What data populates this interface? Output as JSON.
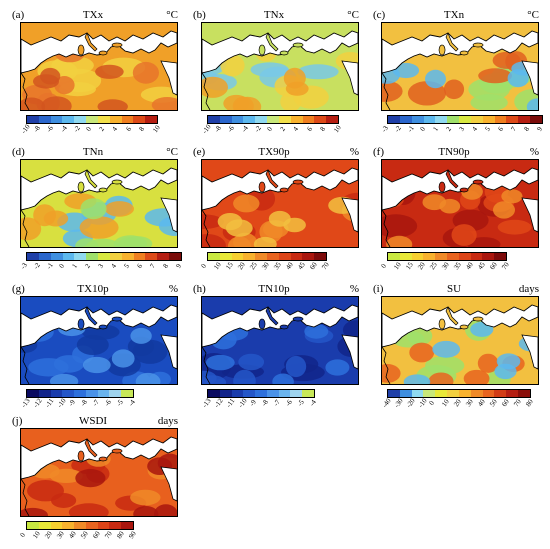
{
  "panels": [
    {
      "id": "a",
      "label": "(a)",
      "title": "TXx",
      "unit": "°C",
      "ticks": [
        "-10",
        "-8",
        "-6",
        "-4",
        "-2",
        "0",
        "2",
        "4",
        "6",
        "8",
        "10"
      ],
      "colors": [
        "#1f3fa8",
        "#2a66cc",
        "#3f8fe0",
        "#5cb8ee",
        "#8fd9f0",
        "#c8e87a",
        "#f2e04a",
        "#f8b22e",
        "#f07f20",
        "#dd4a18",
        "#b51e12"
      ],
      "base": "#f0a028",
      "blobs": [
        [
          "#f2d040",
          0.55
        ],
        [
          "#e8742a",
          0.45
        ],
        [
          "#d2551e",
          0.25
        ]
      ]
    },
    {
      "id": "b",
      "label": "(b)",
      "title": "TNx",
      "unit": "°C",
      "ticks": [
        "-10",
        "-8",
        "-6",
        "-4",
        "-2",
        "0",
        "2",
        "4",
        "6",
        "8",
        "10"
      ],
      "colors": [
        "#1f3fa8",
        "#2a66cc",
        "#3f8fe0",
        "#5cb8ee",
        "#8fd9f0",
        "#c8e87a",
        "#f2e04a",
        "#f8b22e",
        "#f07f20",
        "#dd4a18",
        "#b51e12"
      ],
      "base": "#c8e060",
      "blobs": [
        [
          "#78c8e8",
          0.5
        ],
        [
          "#f2d040",
          0.45
        ],
        [
          "#f0a028",
          0.3
        ]
      ]
    },
    {
      "id": "c",
      "label": "(c)",
      "title": "TXn",
      "unit": "°C",
      "ticks": [
        "-3",
        "-2",
        "-1",
        "0",
        "1",
        "2",
        "3",
        "4",
        "5",
        "6",
        "7",
        "8",
        "9"
      ],
      "colors": [
        "#1f3fa8",
        "#2a66cc",
        "#3f8fe0",
        "#5cb8ee",
        "#8fd9f0",
        "#9fe06a",
        "#d8e840",
        "#f2d040",
        "#f8b22e",
        "#f07f20",
        "#dd4a18",
        "#b51e12",
        "#7a0c0a"
      ],
      "base": "#f2c040",
      "blobs": [
        [
          "#9fe06a",
          0.5
        ],
        [
          "#e06020",
          0.45
        ],
        [
          "#5cb8ee",
          0.2
        ]
      ]
    },
    {
      "id": "d",
      "label": "(d)",
      "title": "TNn",
      "unit": "°C",
      "ticks": [
        "-3",
        "-2",
        "-1",
        "0",
        "1",
        "2",
        "3",
        "4",
        "5",
        "6",
        "7",
        "8",
        "9"
      ],
      "colors": [
        "#1f3fa8",
        "#2a66cc",
        "#3f8fe0",
        "#5cb8ee",
        "#8fd9f0",
        "#9fe06a",
        "#d8e840",
        "#f2d040",
        "#f8b22e",
        "#f07f20",
        "#dd4a18",
        "#b51e12",
        "#7a0c0a"
      ],
      "base": "#d8e040",
      "blobs": [
        [
          "#5cb8ee",
          0.45
        ],
        [
          "#f0a028",
          0.45
        ],
        [
          "#9fe06a",
          0.4
        ]
      ]
    },
    {
      "id": "e",
      "label": "(e)",
      "title": "TX90p",
      "unit": "%",
      "ticks": [
        "0",
        "10",
        "15",
        "20",
        "25",
        "30",
        "35",
        "40",
        "45",
        "60",
        "70"
      ],
      "colors": [
        "#c8e840",
        "#e8e838",
        "#f6d030",
        "#f8b22e",
        "#f08a28",
        "#e86420",
        "#dc4418",
        "#c82a12",
        "#aa160e",
        "#7c0a0a"
      ],
      "base": "#e04818",
      "blobs": [
        [
          "#c82a12",
          0.55
        ],
        [
          "#f08a28",
          0.4
        ],
        [
          "#f2c040",
          0.2
        ]
      ]
    },
    {
      "id": "f",
      "label": "(f)",
      "title": "TN90p",
      "unit": "%",
      "ticks": [
        "0",
        "10",
        "15",
        "20",
        "25",
        "30",
        "35",
        "40",
        "45",
        "60",
        "70"
      ],
      "colors": [
        "#c8e840",
        "#e8e838",
        "#f6d030",
        "#f8b22e",
        "#f08a28",
        "#e86420",
        "#dc4418",
        "#c82a12",
        "#aa160e",
        "#7c0a0a"
      ],
      "base": "#c82a12",
      "blobs": [
        [
          "#a8160e",
          0.55
        ],
        [
          "#e04818",
          0.35
        ],
        [
          "#f08a28",
          0.15
        ]
      ]
    },
    {
      "id": "g",
      "label": "(g)",
      "title": "TX10p",
      "unit": "%",
      "ticks": [
        "-13",
        "-12",
        "-11",
        "-10",
        "-9",
        "-8",
        "-7",
        "-6",
        "-5",
        "-4"
      ],
      "colors": [
        "#0a0a60",
        "#12248a",
        "#1a3cac",
        "#2456c8",
        "#2e70dc",
        "#4a92e8",
        "#6ab4ee",
        "#9fd4ee",
        "#c8e858"
      ],
      "base": "#1a4cc0",
      "blobs": [
        [
          "#2e70dc",
          0.5
        ],
        [
          "#123aa0",
          0.45
        ],
        [
          "#4a92e8",
          0.2
        ]
      ]
    },
    {
      "id": "h",
      "label": "(h)",
      "title": "TN10p",
      "unit": "%",
      "ticks": [
        "-13",
        "-12",
        "-11",
        "-10",
        "-9",
        "-8",
        "-7",
        "-6",
        "-5",
        "-4"
      ],
      "colors": [
        "#0a0a60",
        "#12248a",
        "#1a3cac",
        "#2456c8",
        "#2e70dc",
        "#4a92e8",
        "#6ab4ee",
        "#9fd4ee",
        "#c8e858"
      ],
      "base": "#1a3cac",
      "blobs": [
        [
          "#12248a",
          0.55
        ],
        [
          "#2456c8",
          0.45
        ],
        [
          "#2e70dc",
          0.25
        ]
      ]
    },
    {
      "id": "i",
      "label": "(i)",
      "title": "SU",
      "unit": "days",
      "ticks": [
        "-40",
        "-30",
        "-20",
        "-10",
        "0",
        "10",
        "20",
        "30",
        "40",
        "50",
        "60",
        "70",
        "80"
      ],
      "colors": [
        "#1f3fa8",
        "#3f8fe0",
        "#8fd9f0",
        "#c8e87a",
        "#e8e838",
        "#f2d040",
        "#f8b22e",
        "#f08a28",
        "#e86420",
        "#d23c16",
        "#b51e12",
        "#8a0e0a"
      ],
      "base": "#f2c040",
      "blobs": [
        [
          "#9fe06a",
          0.5
        ],
        [
          "#e86420",
          0.4
        ],
        [
          "#5cb8ee",
          0.2
        ]
      ]
    },
    {
      "id": "j",
      "label": "(j)",
      "title": "WSDI",
      "unit": "days",
      "ticks": [
        "0",
        "10",
        "20",
        "30",
        "40",
        "50",
        "60",
        "70",
        "80",
        "90"
      ],
      "colors": [
        "#c8e840",
        "#e8e838",
        "#f6d030",
        "#f8b22e",
        "#f08a28",
        "#e86420",
        "#dc4418",
        "#c82a12",
        "#aa160e"
      ],
      "base": "#e8601e",
      "blobs": [
        [
          "#c82a12",
          0.5
        ],
        [
          "#f08a28",
          0.4
        ],
        [
          "#a8160e",
          0.25
        ]
      ]
    }
  ]
}
